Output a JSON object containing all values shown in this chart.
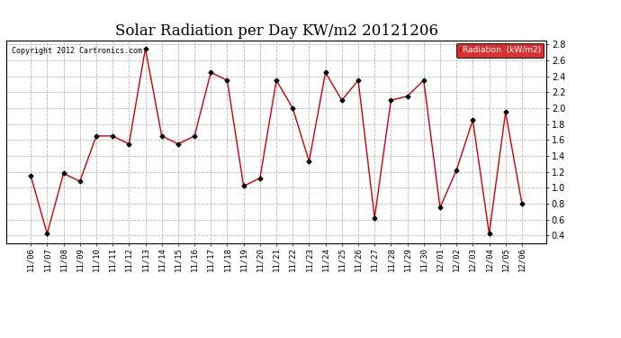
{
  "title": "Solar Radiation per Day KW/m2 20121206",
  "copyright": "Copyright 2012 Cartronics.com",
  "legend_label": "Radiation  (kW/m2)",
  "dates": [
    "11/06",
    "11/07",
    "11/08",
    "11/09",
    "11/10",
    "11/11",
    "11/12",
    "11/13",
    "11/14",
    "11/15",
    "11/16",
    "11/17",
    "11/18",
    "11/19",
    "11/20",
    "11/21",
    "11/22",
    "11/23",
    "11/24",
    "11/25",
    "11/26",
    "11/27",
    "11/28",
    "11/29",
    "11/30",
    "12/01",
    "12/02",
    "12/03",
    "12/04",
    "12/05",
    "12/06"
  ],
  "values": [
    1.15,
    0.42,
    1.18,
    1.08,
    1.65,
    1.65,
    1.55,
    2.75,
    1.65,
    1.55,
    1.65,
    2.45,
    2.35,
    1.02,
    1.12,
    2.35,
    2.0,
    1.33,
    2.45,
    2.1,
    2.35,
    0.62,
    2.1,
    2.15,
    2.35,
    0.75,
    1.22,
    1.85,
    0.42,
    1.95,
    0.8
  ],
  "line_color": "#cc0000",
  "marker_color": "#000000",
  "background_color": "#ffffff",
  "grid_color": "#999999",
  "legend_bg": "#cc0000",
  "legend_text_color": "#ffffff",
  "title_fontsize": 12,
  "ylim": [
    0.3,
    2.85
  ],
  "yticks": [
    0.4,
    0.6,
    0.8,
    1.0,
    1.2,
    1.4,
    1.6,
    1.8,
    2.0,
    2.2,
    2.4,
    2.6,
    2.8
  ]
}
